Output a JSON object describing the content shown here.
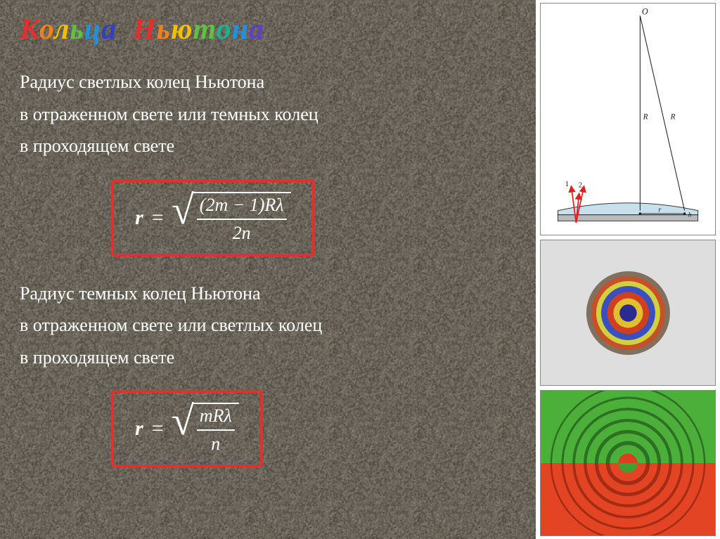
{
  "title": {
    "word1": [
      {
        "ch": "К",
        "color": "#e03030"
      },
      {
        "ch": "о",
        "color": "#f08020"
      },
      {
        "ch": "л",
        "color": "#f0c000"
      },
      {
        "ch": "ь",
        "color": "#60c040"
      },
      {
        "ch": "ц",
        "color": "#2090e0"
      },
      {
        "ch": "а",
        "color": "#3040c0"
      }
    ],
    "word2": [
      {
        "ch": "Н",
        "color": "#e03030"
      },
      {
        "ch": "ь",
        "color": "#f08020"
      },
      {
        "ch": "ю",
        "color": "#f0c000"
      },
      {
        "ch": "т",
        "color": "#60c040"
      },
      {
        "ch": "о",
        "color": "#20b090"
      },
      {
        "ch": "н",
        "color": "#2090e0"
      },
      {
        "ch": "а",
        "color": "#6040c0"
      }
    ]
  },
  "desc1": {
    "l1": "Радиус светлых колец Ньютона",
    "l2": "в отраженном свете или темных колец",
    "l3": "в проходящем свете"
  },
  "desc2": {
    "l1": "Радиус темных колец Ньютона",
    "l2": "в отраженном свете или светлых колец",
    "l3": "в проходящем свете"
  },
  "formula1": {
    "lhs": "r",
    "eq": "=",
    "num": "(2m − 1)Rλ",
    "den": "2n",
    "border": "#e03030"
  },
  "formula2": {
    "lhs": "r",
    "eq": "=",
    "num": "mRλ",
    "den": "n",
    "border": "#e03030"
  },
  "bg": {
    "noise_base": "#6b655a",
    "noise_dark": "#4a463e",
    "noise_light": "#8a8478"
  },
  "geom": {
    "O": "O",
    "R": "R",
    "r": "r",
    "h": "h",
    "ray1": "1",
    "ray2": "2",
    "line_color": "#202020",
    "ray_color": "#e02020",
    "water_color": "#c8e0ec"
  },
  "rings": {
    "colors": [
      "#2a2a90",
      "#e0c030",
      "#d04020",
      "#3a50c0",
      "#d0d040",
      "#c85028",
      "#807060"
    ],
    "radii": [
      14,
      24,
      34,
      44,
      52,
      60,
      68
    ]
  },
  "split": {
    "top_bg": "#4caf3a",
    "bot_bg": "#e34424",
    "ring_stroke_top": "#2c7022",
    "ring_stroke_bot": "#a52c14",
    "center_top": "#d84020",
    "center_bot": "#3da030"
  }
}
